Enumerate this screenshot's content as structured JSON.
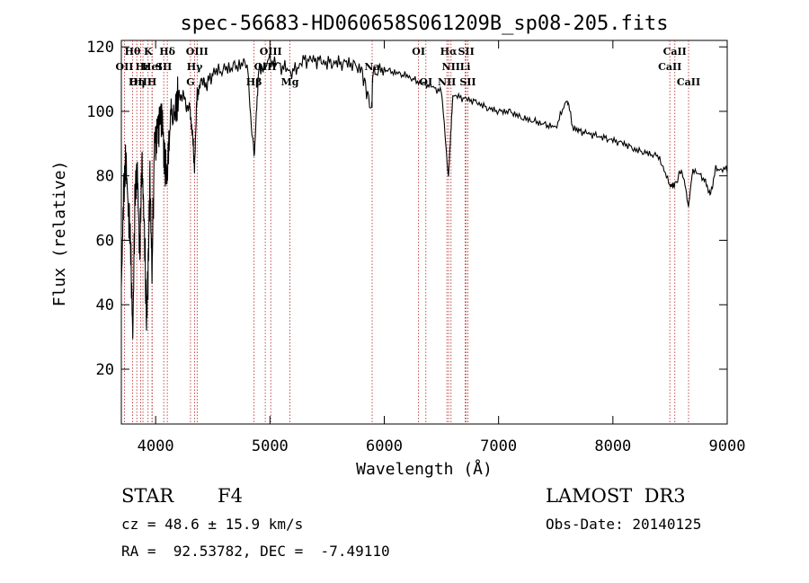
{
  "chart_data": {
    "type": "line",
    "title": "spec-56683-HD060658S061209B_sp08-205.fits",
    "xlabel": "Wavelength (Å)",
    "ylabel": "Flux (relative)",
    "xlim": [
      3700,
      9000
    ],
    "ylim": [
      3,
      122
    ],
    "xticks": [
      4000,
      5000,
      6000,
      7000,
      8000,
      9000
    ],
    "yticks": [
      20,
      40,
      60,
      80,
      100,
      120
    ],
    "grid": false,
    "series": [
      {
        "name": "flux",
        "x": [
          3700,
          3720,
          3740,
          3760,
          3780,
          3800,
          3820,
          3840,
          3860,
          3880,
          3900,
          3920,
          3933,
          3950,
          3968,
          3990,
          4020,
          4050,
          4080,
          4101,
          4130,
          4160,
          4200,
          4250,
          4300,
          4325,
          4340,
          4360,
          4400,
          4450,
          4500,
          4600,
          4700,
          4800,
          4861,
          4900,
          5000,
          5100,
          5200,
          5300,
          5400,
          5500,
          5600,
          5700,
          5800,
          5890,
          5900,
          6000,
          6100,
          6200,
          6300,
          6400,
          6500,
          6562,
          6600,
          6700,
          6800,
          6900,
          7000,
          7100,
          7200,
          7300,
          7400,
          7500,
          7600,
          7650,
          7700,
          7800,
          7900,
          8000,
          8100,
          8200,
          8300,
          8400,
          8498,
          8542,
          8600,
          8662,
          8700,
          8800,
          8850,
          8900,
          9000
        ],
        "y": [
          45,
          75,
          85,
          70,
          60,
          30,
          75,
          82,
          55,
          85,
          65,
          35,
          48,
          80,
          50,
          90,
          95,
          100,
          85,
          78,
          100,
          98,
          105,
          104,
          100,
          92,
          82,
          104,
          110,
          108,
          112,
          113,
          114,
          115,
          85,
          112,
          116,
          114,
          112,
          116,
          116,
          115,
          115,
          115,
          113,
          100,
          112,
          113,
          112,
          111,
          109,
          108,
          106,
          80,
          105,
          104,
          103,
          101,
          100,
          100,
          98,
          97,
          96,
          95,
          104,
          95,
          94,
          93,
          92,
          91,
          90,
          88,
          87,
          86,
          77,
          77,
          82,
          71,
          82,
          79,
          74,
          82,
          82
        ]
      }
    ],
    "line_markers": [
      {
        "label": "Hθ",
        "wavelength": 3798,
        "row": 1
      },
      {
        "label": "OII",
        "wavelength": 3727,
        "row": 2
      },
      {
        "label": "OIII",
        "wavelength": 3869,
        "row": 3
      },
      {
        "label": "Hε",
        "wavelength": 3889,
        "row": 2
      },
      {
        "label": "K",
        "wavelength": 3934,
        "row": 1
      },
      {
        "label": "HeI",
        "wavelength": 3970,
        "row": 2
      },
      {
        "label": "Hη",
        "wavelength": 3835,
        "row": 3
      },
      {
        "label": "H",
        "wavelength": 3968,
        "row": 3
      },
      {
        "label": "Hδ",
        "wavelength": 4102,
        "row": 1
      },
      {
        "label": "SII",
        "wavelength": 4071,
        "row": 2
      },
      {
        "label": "OIII",
        "wavelength": 4363,
        "row": 1
      },
      {
        "label": "Hγ",
        "wavelength": 4341,
        "row": 2
      },
      {
        "label": "G",
        "wavelength": 4305,
        "row": 3
      },
      {
        "label": "OIII",
        "wavelength": 5007,
        "row": 1
      },
      {
        "label": "OIII",
        "wavelength": 4959,
        "row": 2
      },
      {
        "label": "Hβ",
        "wavelength": 4861,
        "row": 3
      },
      {
        "label": "Mg",
        "wavelength": 5175,
        "row": 3
      },
      {
        "label": "Na",
        "wavelength": 5894,
        "row": 2
      },
      {
        "label": "OI",
        "wavelength": 6300,
        "row": 1
      },
      {
        "label": "OI",
        "wavelength": 6364,
        "row": 3
      },
      {
        "label": "Hα",
        "wavelength": 6563,
        "row": 1
      },
      {
        "label": "SII",
        "wavelength": 6717,
        "row": 1
      },
      {
        "label": "NII",
        "wavelength": 6584,
        "row": 2
      },
      {
        "label": "Li",
        "wavelength": 6708,
        "row": 2
      },
      {
        "label": "NII",
        "wavelength": 6548,
        "row": 3
      },
      {
        "label": "SII",
        "wavelength": 6731,
        "row": 3
      },
      {
        "label": "CaII",
        "wavelength": 8542,
        "row": 1
      },
      {
        "label": "CaII",
        "wavelength": 8498,
        "row": 2
      },
      {
        "label": "CaII",
        "wavelength": 8662,
        "row": 3
      }
    ]
  },
  "info": {
    "object_class": "STAR",
    "subclass": "F4",
    "survey": "LAMOST  DR3",
    "cz": "cz = 48.6 ± 15.9 km/s",
    "obs_date": "Obs-Date: 20140125",
    "coords": "RA =  92.53782, DEC =  -7.49110"
  },
  "colors": {
    "line": "#000000",
    "marker": "#b22222",
    "background": "#ffffff"
  }
}
